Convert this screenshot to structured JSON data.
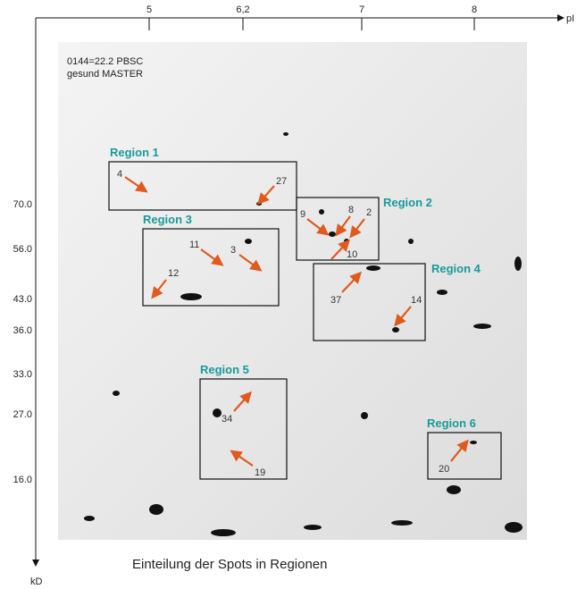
{
  "axes": {
    "x_label": "pI",
    "x_ticks": [
      "5",
      "6,2",
      "7",
      "8"
    ],
    "y_label": "kD",
    "y_ticks": [
      "70.0",
      "56.0",
      "43.0",
      "36.0",
      "33.0",
      "27.0",
      "16.0"
    ]
  },
  "gel_label": [
    "0144=22.2 PBSC",
    "gesund  MASTER"
  ],
  "regions": [
    {
      "label": "Region 1",
      "spots": [
        "4",
        "27"
      ]
    },
    {
      "label": "Region 2",
      "spots": [
        "9",
        "8",
        "2",
        "10"
      ]
    },
    {
      "label": "Region 3",
      "spots": [
        "11",
        "3",
        "12"
      ]
    },
    {
      "label": "Region 4",
      "spots": [
        "37",
        "14"
      ]
    },
    {
      "label": "Region 5",
      "spots": [
        "34",
        "19"
      ]
    },
    {
      "label": "Region 6",
      "spots": [
        "20"
      ]
    }
  ],
  "caption": "Einteilung der Spots in Regionen"
}
